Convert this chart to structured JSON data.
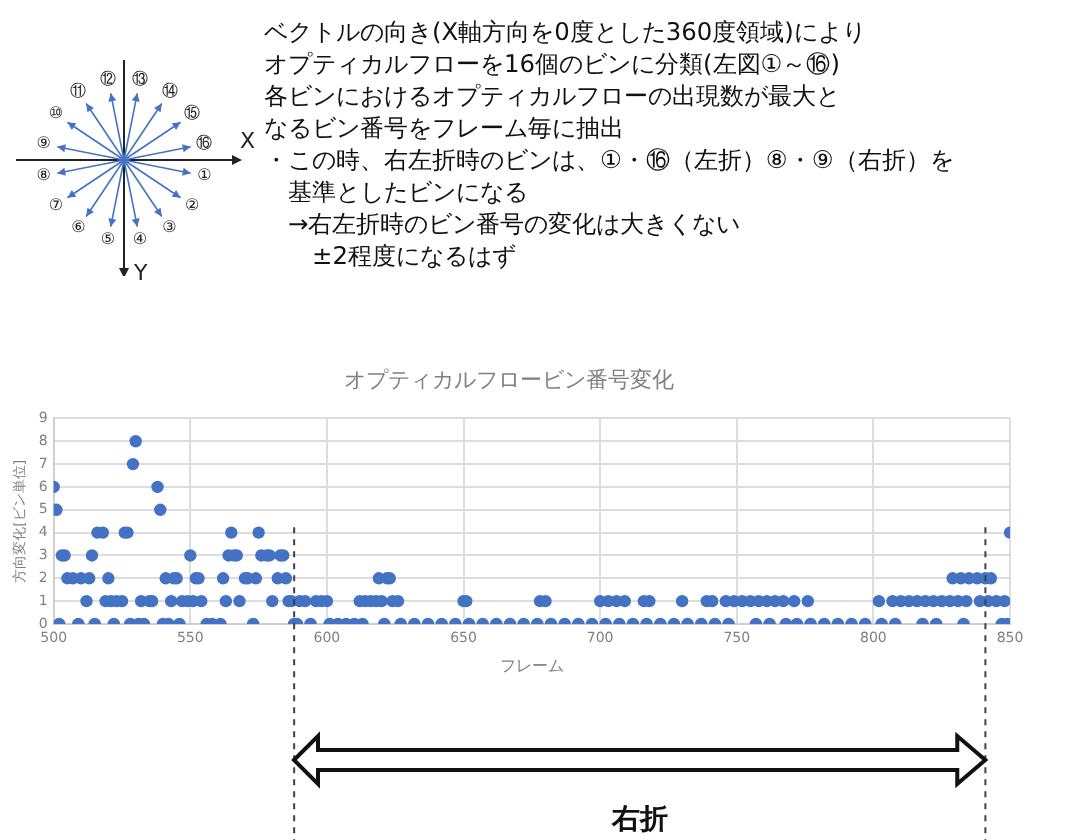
{
  "chart_data": {
    "type": "scatter",
    "title": "オプティカルフロービン番号変化",
    "xlabel": "フレーム",
    "ylabel": "方向変化[ビン単位]",
    "annotations": [
      "ベクトルの向き(X軸方向を0度とした360度領域)により",
      "オプティカルフローを16個のビンに分類(左図①～⑯)",
      "各ビンにおけるオプティカルフローの出現数が最大と",
      "なるビン番号をフレーム毎に抽出",
      "・この時、右左折時のビンは、①・⑯（左折）⑧・⑨（右折）を",
      "　基準としたビンになる",
      "　→右左折時のビン番号の変化は大きくない",
      "　　±2程度になるはず",
      "右折",
      "X",
      "Y",
      "①",
      "②",
      "③",
      "④",
      "⑤",
      "⑥",
      "⑦",
      "⑧",
      "⑨",
      "⑩",
      "⑪",
      "⑫",
      "⑬",
      "⑭",
      "⑮",
      "⑯"
    ],
    "x": [
      500,
      501,
      502,
      503,
      504,
      505,
      507,
      509,
      510,
      512,
      513,
      514,
      515,
      516,
      518,
      519,
      520,
      521,
      522,
      523,
      525,
      526,
      527,
      528,
      529,
      530,
      531,
      532,
      533,
      535,
      536,
      538,
      539,
      540,
      541,
      542,
      543,
      544,
      545,
      546,
      547,
      549,
      550,
      551,
      552,
      553,
      554,
      556,
      558,
      561,
      562,
      563,
      564,
      565,
      566,
      567,
      568,
      570,
      571,
      573,
      574,
      575,
      576,
      578,
      579,
      580,
      582,
      583,
      584,
      585,
      586,
      587,
      588,
      589,
      590,
      592,
      594,
      596,
      598,
      600,
      601,
      604,
      607,
      610,
      612,
      613,
      614,
      616,
      618,
      619,
      620,
      621,
      622,
      623,
      624,
      626,
      627,
      632,
      637,
      642,
      647,
      650,
      651,
      652,
      657,
      662,
      667,
      672,
      677,
      678,
      680,
      682,
      687,
      692,
      697,
      700,
      702,
      703,
      706,
      707,
      709,
      712,
      716,
      717,
      718,
      722,
      727,
      730,
      732,
      737,
      739,
      741,
      742,
      746,
      747,
      749,
      752,
      755,
      757,
      758,
      761,
      762,
      764,
      767,
      768,
      771,
      772,
      776,
      777,
      782,
      787,
      792,
      797,
      802,
      803,
      807,
      808,
      810,
      813,
      816,
      818,
      819,
      822,
      823,
      825,
      828,
      829,
      831,
      832,
      833,
      834,
      835,
      838,
      839,
      841,
      842,
      843,
      845,
      847,
      848,
      849,
      850
    ],
    "values": [
      6,
      5,
      0,
      3,
      3,
      2,
      2,
      0,
      2,
      1,
      2,
      3,
      0,
      4,
      4,
      1,
      2,
      1,
      0,
      1,
      1,
      4,
      4,
      0,
      7,
      8,
      0,
      1,
      0,
      1,
      1,
      6,
      5,
      0,
      2,
      0,
      1,
      2,
      2,
      0,
      1,
      1,
      3,
      1,
      2,
      2,
      1,
      0,
      0,
      0,
      2,
      1,
      3,
      4,
      3,
      3,
      1,
      2,
      2,
      0,
      2,
      4,
      3,
      3,
      3,
      1,
      2,
      3,
      3,
      2,
      1,
      1,
      0,
      0,
      1,
      1,
      0,
      1,
      1,
      1,
      0,
      0,
      0,
      0,
      1,
      0,
      1,
      1,
      1,
      2,
      1,
      0,
      2,
      2,
      1,
      1,
      0,
      0,
      0,
      0,
      0,
      1,
      1,
      0,
      0,
      0,
      0,
      0,
      0,
      1,
      1,
      0,
      0,
      0,
      0,
      1,
      0,
      1,
      1,
      0,
      1,
      0,
      1,
      0,
      1,
      0,
      0,
      1,
      0,
      0,
      1,
      1,
      0,
      1,
      0,
      1,
      1,
      1,
      0,
      1,
      1,
      0,
      1,
      1,
      0,
      1,
      0,
      1,
      0,
      0,
      0,
      0,
      0,
      1,
      0,
      1,
      0,
      1,
      1,
      1,
      0,
      1,
      1,
      0,
      1,
      1,
      2,
      1,
      2,
      0,
      1,
      2,
      2,
      1,
      2,
      1,
      2,
      1,
      0,
      1,
      0,
      4
    ],
    "color": "#4472c4",
    "marker": "circle",
    "xlim": [
      500,
      850
    ],
    "xticks": [
      500,
      550,
      600,
      650,
      700,
      750,
      800,
      850
    ],
    "ylim": [
      0,
      9
    ],
    "yticks": [
      0,
      1,
      2,
      3,
      4,
      5,
      6,
      7,
      8,
      9
    ],
    "grid": true,
    "legend": false,
    "ref_lines": [
      {
        "axis": "x",
        "value": 588,
        "line_style": "dashed",
        "color": "#404040"
      },
      {
        "axis": "x",
        "value": 841,
        "line_style": "dashed",
        "color": "#404040"
      }
    ]
  }
}
